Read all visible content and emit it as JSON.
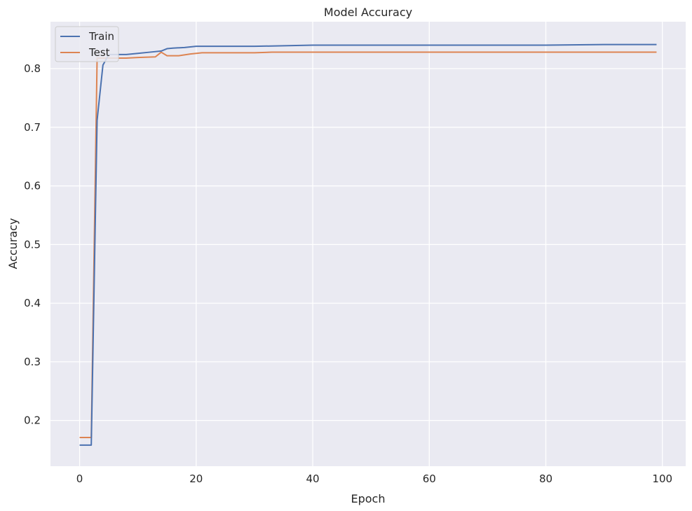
{
  "chart_data": {
    "type": "line",
    "title": "Model Accuracy",
    "xlabel": "Epoch",
    "ylabel": "Accuracy",
    "xlim": [
      -5,
      104
    ],
    "ylim": [
      0.122,
      0.88
    ],
    "xticks": [
      0,
      20,
      40,
      60,
      80,
      100
    ],
    "yticks": [
      0.2,
      0.3,
      0.4,
      0.5,
      0.6,
      0.7,
      0.8
    ],
    "grid": true,
    "legend_position": "upper-left",
    "series": [
      {
        "name": "Train",
        "color": "#4c72b0",
        "points": [
          [
            0,
            0.158
          ],
          [
            2,
            0.158
          ],
          [
            3,
            0.712
          ],
          [
            4,
            0.806
          ],
          [
            5,
            0.824
          ],
          [
            8,
            0.824
          ],
          [
            10,
            0.826
          ],
          [
            12,
            0.828
          ],
          [
            14,
            0.83
          ],
          [
            15,
            0.834
          ],
          [
            16,
            0.835
          ],
          [
            18,
            0.836
          ],
          [
            20,
            0.838
          ],
          [
            25,
            0.838
          ],
          [
            30,
            0.838
          ],
          [
            35,
            0.839
          ],
          [
            40,
            0.84
          ],
          [
            50,
            0.84
          ],
          [
            60,
            0.84
          ],
          [
            70,
            0.84
          ],
          [
            80,
            0.84
          ],
          [
            90,
            0.841
          ],
          [
            99,
            0.841
          ]
        ]
      },
      {
        "name": "Test",
        "color": "#dd8452",
        "points": [
          [
            0,
            0.171
          ],
          [
            2,
            0.171
          ],
          [
            3,
            0.818
          ],
          [
            5,
            0.818
          ],
          [
            8,
            0.818
          ],
          [
            10,
            0.819
          ],
          [
            13,
            0.82
          ],
          [
            14,
            0.828
          ],
          [
            15,
            0.822
          ],
          [
            17,
            0.822
          ],
          [
            19,
            0.825
          ],
          [
            21,
            0.827
          ],
          [
            25,
            0.827
          ],
          [
            30,
            0.827
          ],
          [
            33,
            0.828
          ],
          [
            40,
            0.828
          ],
          [
            50,
            0.828
          ],
          [
            60,
            0.828
          ],
          [
            70,
            0.828
          ],
          [
            80,
            0.828
          ],
          [
            90,
            0.828
          ],
          [
            99,
            0.828
          ]
        ]
      }
    ]
  }
}
